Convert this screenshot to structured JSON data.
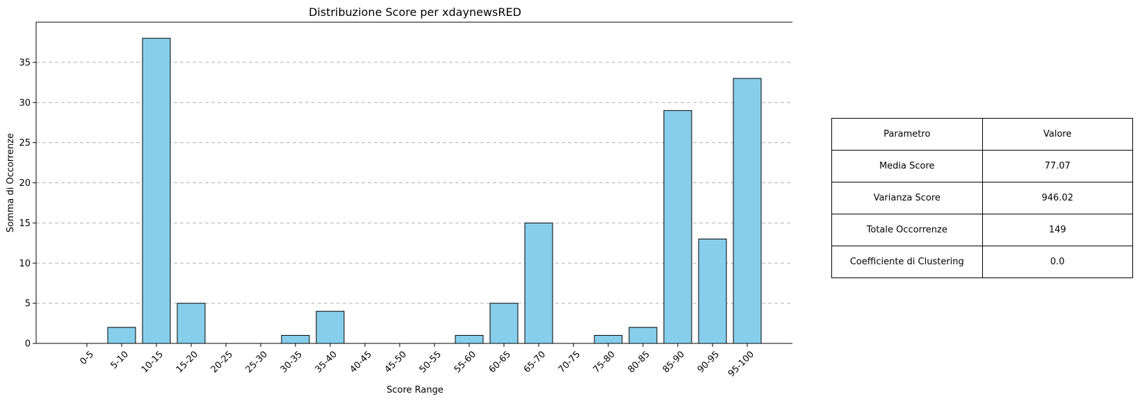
{
  "chart_data": {
    "type": "bar",
    "title": "Distribuzione Score per xdaynewsRED",
    "xlabel": "Score Range",
    "ylabel": "Somma di Occorrenze",
    "categories": [
      "0-5",
      "5-10",
      "10-15",
      "15-20",
      "20-25",
      "25-30",
      "30-35",
      "35-40",
      "40-45",
      "45-50",
      "50-55",
      "55-60",
      "60-65",
      "65-70",
      "70-75",
      "75-80",
      "80-85",
      "85-90",
      "90-95",
      "95-100"
    ],
    "values": [
      0,
      2,
      38,
      5,
      0,
      0,
      1,
      4,
      0,
      0,
      0,
      1,
      5,
      15,
      0,
      1,
      2,
      29,
      13,
      33
    ],
    "ylim": [
      0,
      40
    ],
    "yticks": [
      0,
      5,
      10,
      15,
      20,
      25,
      30,
      35
    ],
    "grid": "y-dashed",
    "bar_color": "#87ceeb",
    "edge_color": "#000000"
  },
  "table": {
    "headers": [
      "Parametro",
      "Valore"
    ],
    "rows": [
      [
        "Media Score",
        "77.07"
      ],
      [
        "Varianza Score",
        "946.02"
      ],
      [
        "Totale Occorrenze",
        "149"
      ],
      [
        "Coefficiente di Clustering",
        "0.0"
      ]
    ]
  }
}
